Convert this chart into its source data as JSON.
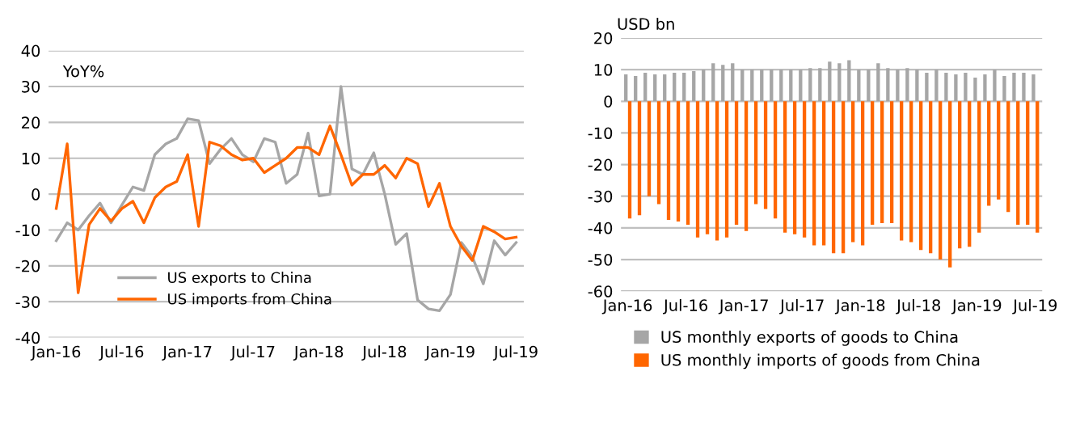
{
  "chart_data": [
    {
      "type": "line",
      "ylabel": "YoY%",
      "categories": [
        "Jan-16",
        null,
        null,
        null,
        null,
        null,
        "Jul-16",
        null,
        null,
        null,
        null,
        null,
        "Jan-17",
        null,
        null,
        null,
        null,
        null,
        "Jul-17",
        null,
        null,
        null,
        null,
        null,
        "Jan-18",
        null,
        null,
        null,
        null,
        null,
        "Jul-18",
        null,
        null,
        null,
        null,
        null,
        "Jan-19",
        null,
        null,
        null,
        null,
        null,
        "Jul-19"
      ],
      "series": [
        {
          "name": "US exports to China",
          "color": "#a6a6a6",
          "values": [
            -13,
            -8,
            -10,
            -6,
            -2.5,
            -8,
            -3,
            2,
            1,
            11,
            14,
            15.5,
            21,
            20.5,
            8.5,
            12.5,
            15.5,
            11,
            9,
            15.5,
            14.5,
            3,
            5.5,
            17,
            -0.5,
            0,
            30,
            7,
            5.5,
            11.5,
            0,
            -14,
            -11,
            -29.5,
            -32,
            -32.5,
            -28,
            -13.5,
            -17.5,
            -25,
            -13,
            -17,
            -13.5
          ]
        },
        {
          "name": "US imports from China",
          "color": "#ff6600",
          "values": [
            -4,
            14,
            -27.5,
            -8.5,
            -4,
            -7.5,
            -4,
            -2,
            -8,
            -1,
            2,
            3.5,
            11,
            -9,
            14.5,
            13.5,
            11,
            9.5,
            10,
            6,
            8,
            10,
            13,
            13,
            11,
            19,
            11,
            2.5,
            5.5,
            5.5,
            8,
            4.5,
            10,
            8.5,
            -3.5,
            3,
            -9,
            -14.5,
            -18.5,
            -9,
            -10.5,
            -12.5,
            -12
          ]
        }
      ],
      "ylim": [
        -40,
        40
      ],
      "yticks": [
        -40,
        -30,
        -20,
        -10,
        0,
        10,
        20,
        30,
        40
      ],
      "grid": "y",
      "legend": "bottom left"
    },
    {
      "type": "bar",
      "ylabel": "USD bn",
      "categories": [
        "Jan-16",
        null,
        null,
        null,
        null,
        null,
        "Jul-16",
        null,
        null,
        null,
        null,
        null,
        "Jan-17",
        null,
        null,
        null,
        null,
        null,
        "Jul-17",
        null,
        null,
        null,
        null,
        null,
        "Jan-18",
        null,
        null,
        null,
        null,
        null,
        "Jul-18",
        null,
        null,
        null,
        null,
        null,
        "Jan-19",
        null,
        null,
        null,
        null,
        null,
        "Jul-19"
      ],
      "series": [
        {
          "name": "US monthly exports of goods to China",
          "color": "#a6a6a6",
          "values": [
            8.5,
            8,
            9,
            8.5,
            8.5,
            9,
            9,
            9.5,
            10,
            12,
            11.5,
            12,
            10,
            10,
            10,
            10,
            10,
            10,
            10,
            10.5,
            10.5,
            12.5,
            12,
            13,
            10,
            10,
            12,
            10.5,
            10,
            10.5,
            10,
            9,
            10,
            9,
            8.5,
            9,
            7.5,
            8.5,
            10,
            8,
            9,
            9,
            8.5
          ]
        },
        {
          "name": "US monthly imports of goods from China",
          "color": "#ff6600",
          "values": [
            -37,
            -36,
            -30,
            -32.5,
            -37.5,
            -38,
            -39,
            -43,
            -42,
            -44,
            -43,
            -39,
            -41,
            -32.5,
            -34,
            -37,
            -41.5,
            -42,
            -43,
            -45.5,
            -45.5,
            -48,
            -48,
            -44.5,
            -45.5,
            -39,
            -38.5,
            -38.5,
            -44,
            -44.5,
            -47,
            -48,
            -50,
            -52.5,
            -46.5,
            -46,
            -41.5,
            -33,
            -31,
            -35,
            -39,
            -39,
            -41.5
          ]
        }
      ],
      "ylim": [
        -60,
        20
      ],
      "yticks": [
        -60,
        -50,
        -40,
        -30,
        -20,
        -10,
        0,
        10,
        20
      ],
      "grid": "y",
      "legend": "bottom"
    }
  ]
}
